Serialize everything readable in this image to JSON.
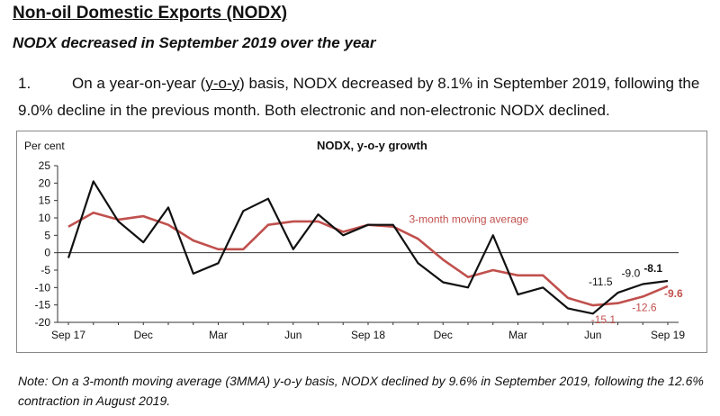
{
  "header": {
    "title": "Non-oil Domestic Exports (NODX)",
    "subtitle": "NODX decreased in September 2019 over the year"
  },
  "paragraph": {
    "number": "1.",
    "text_before": "On a year-on-year (",
    "underlined": "y-o-y",
    "text_after": ") basis, NODX decreased by 8.1% in September 2019, following the 9.0% decline in the previous month. Both electronic and non-electronic NODX declined."
  },
  "note": {
    "text": "Note: On a 3-month moving average (3MMA) y-o-y basis, NODX declined by 9.6% in September 2019, following the 12.6% contraction in August 2019."
  },
  "colors": {
    "yoy_line": "#111111",
    "mma_line": "#c0504d",
    "axis": "#333333"
  },
  "chart_data": {
    "type": "line",
    "title": "NODX, y-o-y growth",
    "ylabel": "Per cent",
    "ylim": [
      -20,
      25
    ],
    "yticks": [
      25,
      20,
      15,
      10,
      5,
      0,
      -5,
      -10,
      -15,
      -20
    ],
    "x": [
      "Sep 17",
      "Oct 17",
      "Nov 17",
      "Dec 17",
      "Jan 18",
      "Feb 18",
      "Mar 18",
      "Apr 18",
      "May 18",
      "Jun 18",
      "Jul 18",
      "Aug 18",
      "Sep 18",
      "Oct 18",
      "Nov 18",
      "Dec 18",
      "Jan 19",
      "Feb 19",
      "Mar 19",
      "Apr 19",
      "May 19",
      "Jun 19",
      "Jul 19",
      "Aug 19",
      "Sep 19"
    ],
    "xtick_labels": [
      {
        "index": 0,
        "label": "Sep 17"
      },
      {
        "index": 3,
        "label": "Dec"
      },
      {
        "index": 6,
        "label": "Mar"
      },
      {
        "index": 9,
        "label": "Jun"
      },
      {
        "index": 12,
        "label": "Sep 18"
      },
      {
        "index": 15,
        "label": "Dec"
      },
      {
        "index": 18,
        "label": "Mar"
      },
      {
        "index": 21,
        "label": "Jun"
      },
      {
        "index": 24,
        "label": "Sep 19"
      }
    ],
    "series": [
      {
        "values": [
          -1.5,
          20.5,
          9.0,
          3.0,
          13.0,
          -6.0,
          -3.0,
          12.0,
          15.5,
          1.0,
          11.0,
          5.0,
          8.0,
          8.0,
          -3.0,
          -8.5,
          -10.0,
          5.0,
          -12.0,
          -10.0,
          -16.0,
          -17.5,
          -11.5,
          -9.0,
          -8.1
        ]
      },
      {
        "name": "3-month moving average",
        "values": [
          7.5,
          11.5,
          9.5,
          10.5,
          8.0,
          3.5,
          1.0,
          1.0,
          8.0,
          9.0,
          9.0,
          6.0,
          8.0,
          7.5,
          4.0,
          -2.0,
          -7.0,
          -5.0,
          -6.5,
          -6.5,
          -13.0,
          -15.1,
          -14.5,
          -12.6,
          -9.6
        ]
      }
    ],
    "data_labels": [
      {
        "series": 0,
        "index": 22,
        "text": "-11.5",
        "bold": false
      },
      {
        "series": 0,
        "index": 23,
        "text": "-9.0",
        "bold": false
      },
      {
        "series": 0,
        "index": 24,
        "text": "-8.1",
        "bold": true
      },
      {
        "series": 1,
        "index": 21,
        "text": "-15.1",
        "bold": false
      },
      {
        "series": 1,
        "index": 23,
        "text": "-12.6",
        "bold": false
      },
      {
        "series": 1,
        "index": 24,
        "text": "-9.6",
        "bold": true
      }
    ]
  }
}
